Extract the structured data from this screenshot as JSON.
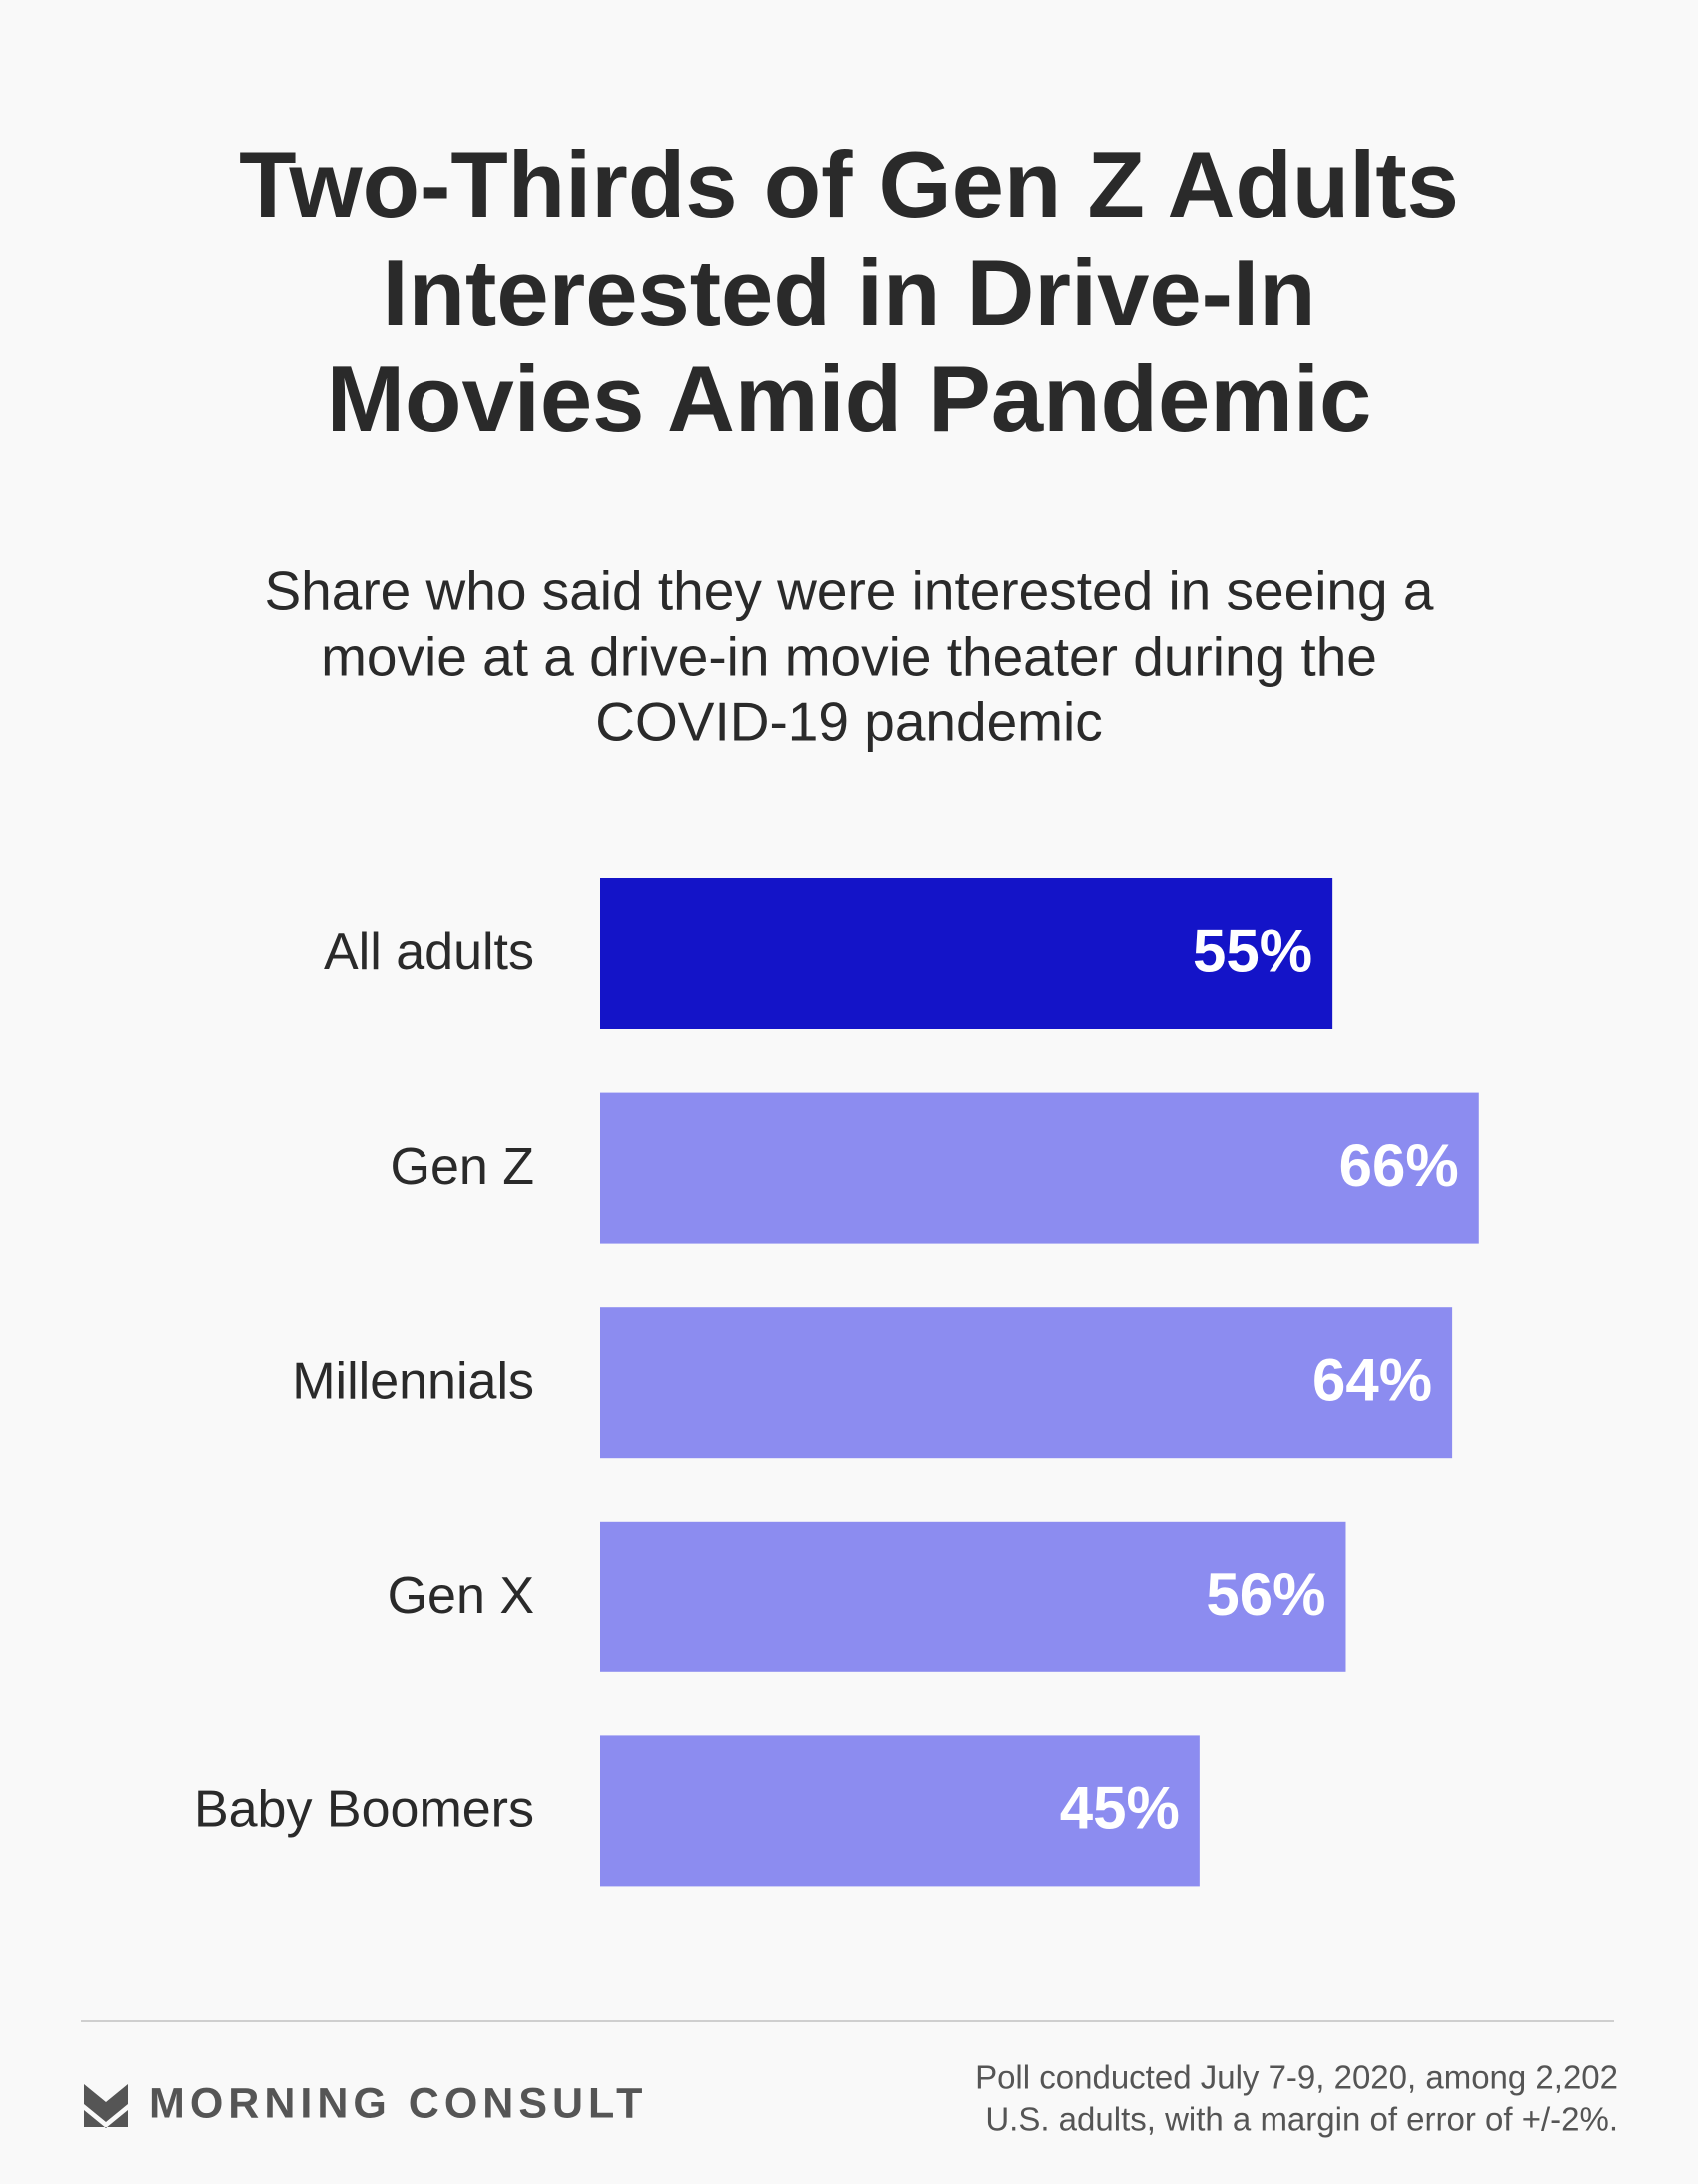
{
  "chart_data": {
    "type": "bar",
    "orientation": "horizontal",
    "title": [
      "Two-Thirds of Gen Z Adults",
      "Interested in Drive-In",
      "Movies Amid Pandemic"
    ],
    "subtitle": [
      "Share who said they were interested in seeing a",
      "movie at a drive-in movie theater during the",
      "COVID-19 pandemic"
    ],
    "categories": [
      "All adults",
      "Gen Z",
      "Millennials",
      "Gen X",
      "Baby Boomers"
    ],
    "values": [
      55,
      66,
      64,
      56,
      45
    ],
    "value_labels": [
      "55%",
      "66%",
      "64%",
      "56%",
      "45%"
    ],
    "colors": [
      "#1414c8",
      "#8c8cf0",
      "#8c8cf0",
      "#8c8cf0",
      "#8c8cf0"
    ],
    "brand": "MORNING CONSULT",
    "note": [
      "Poll conducted July 7-9, 2020, among 2,202",
      "U.S. adults, with a margin of error of +/-2%."
    ]
  }
}
